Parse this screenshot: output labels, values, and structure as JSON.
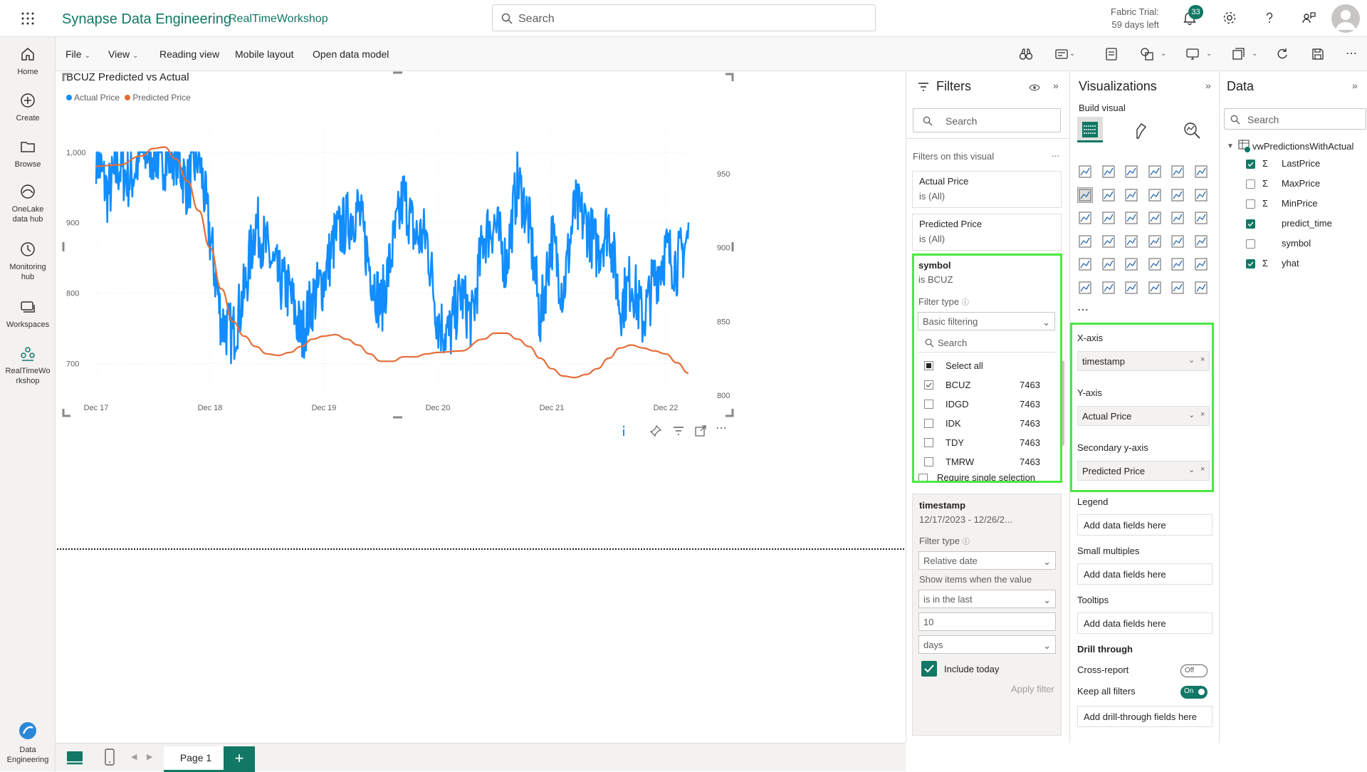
{
  "topbar": {
    "brand": "Synapse Data Engineering",
    "workspace": "RealTimeWorkshop",
    "search_placeholder": "Search",
    "trial_line1": "Fabric Trial:",
    "trial_line2": "59 days left",
    "notification_count": "33"
  },
  "rail": {
    "home": "Home",
    "create": "Create",
    "browse": "Browse",
    "onelake_1": "OneLake",
    "onelake_2": "data hub",
    "monitoring_1": "Monitoring",
    "monitoring_2": "hub",
    "workspaces": "Workspaces",
    "rtw_1": "RealTimeWo",
    "rtw_2": "rkshop",
    "de_1": "Data",
    "de_2": "Engineering"
  },
  "toolbar": {
    "file": "File",
    "view": "View",
    "reading_view": "Reading view",
    "mobile_layout": "Mobile layout",
    "open_data_model": "Open data model"
  },
  "visual": {
    "title": "BCUZ Predicted vs Actual",
    "legend_actual": "Actual Price",
    "legend_predicted": "Predicted Price",
    "colors": {
      "actual": "#118DFF",
      "predicted": "#E66C37"
    }
  },
  "chart_data": {
    "type": "line",
    "title": "BCUZ Predicted vs Actual",
    "x_ticks": [
      "Dec 17",
      "Dec 18",
      "Dec 19",
      "Dec 20",
      "Dec 21",
      "Dec 22"
    ],
    "y_left_ticks": [
      "1,000",
      "900",
      "800",
      "700"
    ],
    "y_right_ticks": [
      "950",
      "900",
      "850",
      "800"
    ],
    "y_left_range": [
      655,
      1022
    ],
    "y_right_range": [
      800,
      975
    ],
    "series": [
      {
        "name": "Actual Price",
        "axis": "left",
        "x": [
          17.0,
          17.1,
          17.2,
          17.3,
          17.4,
          17.5,
          17.6,
          17.7,
          17.8,
          17.9,
          18.0,
          18.1,
          18.2,
          18.3,
          18.4,
          18.5,
          18.6,
          18.7,
          18.8,
          18.9,
          19.0,
          19.1,
          19.2,
          19.3,
          19.4,
          19.5,
          19.6,
          19.7,
          19.8,
          19.9,
          20.0,
          20.1,
          20.2,
          20.3,
          20.4,
          20.5,
          20.6,
          20.7,
          20.8,
          20.9,
          21.0,
          21.1,
          21.2,
          21.3,
          21.4,
          21.5,
          21.6,
          21.7,
          21.8,
          21.9,
          22.0,
          22.1,
          22.2
        ],
        "values": [
          1000,
          940,
          980,
          960,
          1000,
          1000,
          990,
          1000,
          950,
          1000,
          880,
          760,
          740,
          800,
          900,
          860,
          820,
          800,
          740,
          790,
          820,
          880,
          900,
          920,
          840,
          780,
          860,
          940,
          880,
          880,
          760,
          740,
          800,
          760,
          880,
          900,
          840,
          960,
          900,
          760,
          880,
          800,
          920,
          900,
          860,
          900,
          780,
          820,
          760,
          820,
          860,
          840,
          880
        ]
      },
      {
        "name": "Predicted Price",
        "axis": "right",
        "x": [
          17.0,
          17.2,
          17.4,
          17.5,
          17.6,
          17.7,
          17.8,
          17.9,
          18.0,
          18.1,
          18.2,
          18.3,
          18.4,
          18.5,
          18.6,
          18.7,
          18.8,
          18.9,
          19.0,
          19.1,
          19.2,
          19.3,
          19.4,
          19.5,
          19.6,
          19.7,
          19.8,
          19.9,
          20.0,
          20.2,
          20.4,
          20.5,
          20.6,
          20.7,
          20.8,
          20.9,
          21.0,
          21.1,
          21.2,
          21.3,
          21.4,
          21.5,
          21.6,
          21.7,
          21.8,
          21.9,
          22.0,
          22.1,
          22.2
        ],
        "values": [
          955,
          956,
          962,
          967,
          968,
          960,
          945,
          925,
          900,
          872,
          850,
          840,
          833,
          828,
          827,
          829,
          833,
          838,
          840,
          841,
          838,
          834,
          828,
          823,
          823,
          826,
          826,
          828,
          829,
          830,
          838,
          842,
          842,
          838,
          833,
          825,
          818,
          813,
          812,
          814,
          818,
          825,
          832,
          834,
          832,
          830,
          828,
          822,
          815
        ]
      }
    ]
  },
  "pages": {
    "page1": "Page 1",
    "add": "+"
  },
  "filters": {
    "title": "Filters",
    "search_placeholder": "Search",
    "section_label": "Filters on this visual",
    "more": "...",
    "actual": {
      "name": "Actual Price",
      "state": "is (All)"
    },
    "predicted": {
      "name": "Predicted Price",
      "state": "is (All)"
    },
    "symbol": {
      "name": "symbol",
      "state": "is BCUZ",
      "filter_type_label": "Filter type",
      "filter_type_value": "Basic filtering",
      "search_placeholder": "Search",
      "select_all": "Select all",
      "items": [
        {
          "label": "BCUZ",
          "count": "7463",
          "checked": true
        },
        {
          "label": "IDGD",
          "count": "7463",
          "checked": false
        },
        {
          "label": "IDK",
          "count": "7463",
          "checked": false
        },
        {
          "label": "TDY",
          "count": "7463",
          "checked": false
        },
        {
          "label": "TMRW",
          "count": "7463",
          "checked": false
        }
      ]
    },
    "require_single": "Require single selection",
    "timestamp": {
      "name": "timestamp",
      "state": "12/17/2023 - 12/26/2...",
      "filter_type_label": "Filter type",
      "filter_type_value": "Relative date",
      "show_items_label": "Show items when the value",
      "operator": "is in the last",
      "amount": "10",
      "unit": "days",
      "include_today": "Include today",
      "apply": "Apply filter"
    }
  },
  "viz": {
    "title": "Visualizations",
    "build_visual": "Build visual",
    "xaxis_label": "X-axis",
    "xaxis_field": "timestamp",
    "yaxis_label": "Y-axis",
    "yaxis_field": "Actual Price",
    "secondary_label": "Secondary y-axis",
    "secondary_field": "Predicted Price",
    "legend_label": "Legend",
    "legend_placeholder": "Add data fields here",
    "small_multiples_label": "Small multiples",
    "small_multiples_placeholder": "Add data fields here",
    "tooltips_label": "Tooltips",
    "tooltips_placeholder": "Add data fields here",
    "drill_label": "Drill through",
    "cross_report": "Cross-report",
    "cross_report_state": "Off",
    "keep_filters": "Keep all filters",
    "keep_filters_state": "On",
    "drill_placeholder": "Add drill-through fields here",
    "more": "..."
  },
  "data_pane": {
    "title": "Data",
    "search_placeholder": "Search",
    "table": "vwPredictionsWithActual",
    "fields": [
      {
        "label": "LastPrice",
        "sigma": true,
        "checked": true
      },
      {
        "label": "MaxPrice",
        "sigma": true,
        "checked": false
      },
      {
        "label": "MinPrice",
        "sigma": true,
        "checked": false
      },
      {
        "label": "predict_time",
        "sigma": false,
        "checked": true
      },
      {
        "label": "symbol",
        "sigma": false,
        "checked": false
      },
      {
        "label": "yhat",
        "sigma": true,
        "checked": true
      }
    ]
  }
}
